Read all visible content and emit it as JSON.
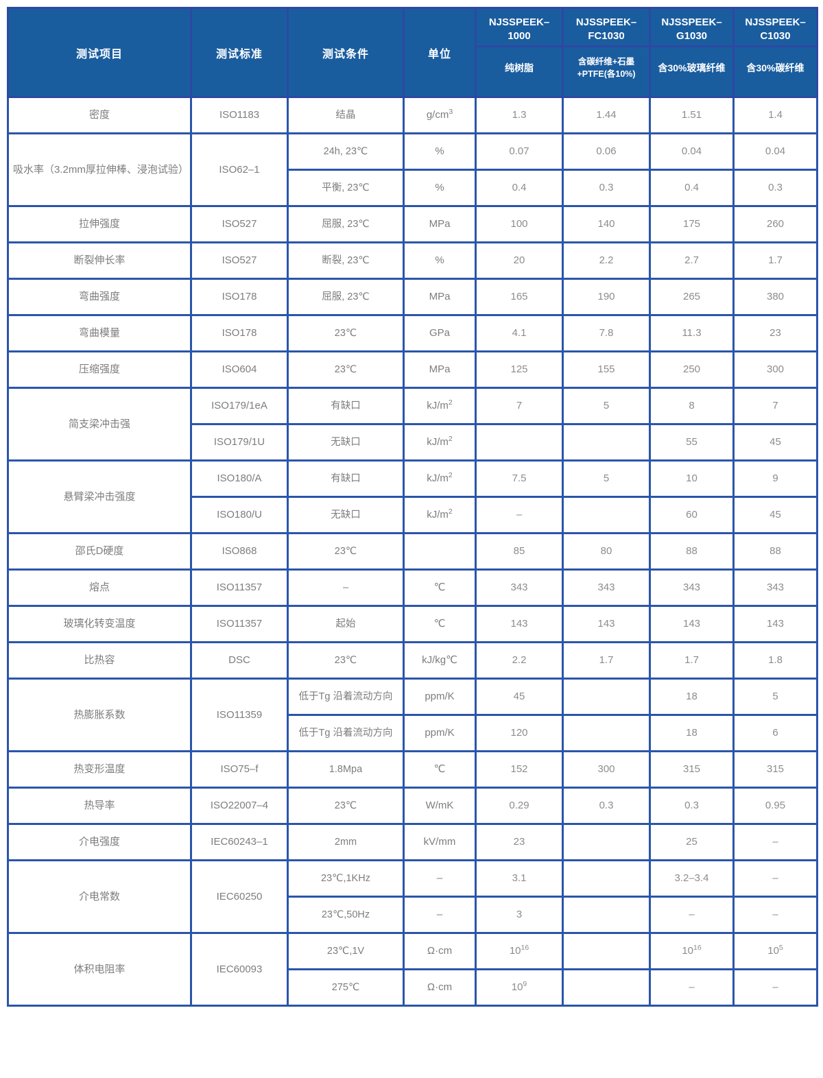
{
  "header": {
    "col_test_item": "测试项目",
    "col_standard": "测试标准",
    "col_condition": "测试条件",
    "col_unit": "单位",
    "products": [
      {
        "name": "NJSSPEEK–\n1000",
        "desc": "纯树脂"
      },
      {
        "name": "NJSSPEEK–\nFC1030",
        "desc": "含碳纤维+石墨\n+PTFE(各10%)"
      },
      {
        "name": "NJSSPEEK–\nG1030",
        "desc": "含30%玻璃纤维"
      },
      {
        "name": "NJSSPEEK–\nC1030",
        "desc": "含30%碳纤维"
      }
    ]
  },
  "rows": [
    [
      {
        "c": "item",
        "t": "密度"
      },
      {
        "c": "std",
        "t": "ISO1183"
      },
      {
        "c": "cond",
        "t": "结晶"
      },
      {
        "c": "unit",
        "t": "g/cm^3"
      },
      {
        "c": "val",
        "t": "1.3"
      },
      {
        "c": "val",
        "t": "1.44"
      },
      {
        "c": "val",
        "t": "1.51"
      },
      {
        "c": "val",
        "t": "1.4"
      }
    ],
    [
      {
        "c": "item",
        "t": "吸水率（3.2mm厚拉伸棒、浸泡试验）",
        "rs": 2
      },
      {
        "c": "std",
        "t": "ISO62–1",
        "rs": 2
      },
      {
        "c": "cond",
        "t": "24h, 23℃"
      },
      {
        "c": "unit",
        "t": "%"
      },
      {
        "c": "val",
        "t": "0.07"
      },
      {
        "c": "val",
        "t": "0.06"
      },
      {
        "c": "val",
        "t": "0.04"
      },
      {
        "c": "val",
        "t": "0.04"
      }
    ],
    [
      {
        "c": "cond",
        "t": "平衡, 23℃"
      },
      {
        "c": "unit",
        "t": "%"
      },
      {
        "c": "val",
        "t": "0.4"
      },
      {
        "c": "val",
        "t": "0.3"
      },
      {
        "c": "val",
        "t": "0.4"
      },
      {
        "c": "val",
        "t": "0.3"
      }
    ],
    [
      {
        "c": "item",
        "t": "拉伸强度"
      },
      {
        "c": "std",
        "t": "ISO527"
      },
      {
        "c": "cond",
        "t": "屈服, 23℃"
      },
      {
        "c": "unit",
        "t": "MPa"
      },
      {
        "c": "val",
        "t": "100"
      },
      {
        "c": "val",
        "t": "140"
      },
      {
        "c": "val",
        "t": "175"
      },
      {
        "c": "val",
        "t": "260"
      }
    ],
    [
      {
        "c": "item",
        "t": "断裂伸长率"
      },
      {
        "c": "std",
        "t": "ISO527"
      },
      {
        "c": "cond",
        "t": "断裂, 23℃"
      },
      {
        "c": "unit",
        "t": "%"
      },
      {
        "c": "val",
        "t": "20"
      },
      {
        "c": "val",
        "t": "2.2"
      },
      {
        "c": "val",
        "t": "2.7"
      },
      {
        "c": "val",
        "t": "1.7"
      }
    ],
    [
      {
        "c": "item",
        "t": "弯曲强度"
      },
      {
        "c": "std",
        "t": "ISO178"
      },
      {
        "c": "cond",
        "t": "屈服, 23℃"
      },
      {
        "c": "unit",
        "t": "MPa"
      },
      {
        "c": "val",
        "t": "165"
      },
      {
        "c": "val",
        "t": "190"
      },
      {
        "c": "val",
        "t": "265"
      },
      {
        "c": "val",
        "t": "380"
      }
    ],
    [
      {
        "c": "item",
        "t": "弯曲模量"
      },
      {
        "c": "std",
        "t": "ISO178"
      },
      {
        "c": "cond",
        "t": "23℃"
      },
      {
        "c": "unit",
        "t": "GPa"
      },
      {
        "c": "val",
        "t": "4.1"
      },
      {
        "c": "val",
        "t": "7.8"
      },
      {
        "c": "val",
        "t": "11.3"
      },
      {
        "c": "val",
        "t": "23"
      }
    ],
    [
      {
        "c": "item",
        "t": "压缩强度"
      },
      {
        "c": "std",
        "t": "ISO604"
      },
      {
        "c": "cond",
        "t": "23℃"
      },
      {
        "c": "unit",
        "t": "MPa"
      },
      {
        "c": "val",
        "t": "125"
      },
      {
        "c": "val",
        "t": "155"
      },
      {
        "c": "val",
        "t": "250"
      },
      {
        "c": "val",
        "t": "300"
      }
    ],
    [
      {
        "c": "item",
        "t": "简支梁冲击强",
        "rs": 2
      },
      {
        "c": "std",
        "t": "ISO179/1eA"
      },
      {
        "c": "cond",
        "t": "有缺口"
      },
      {
        "c": "unit",
        "t": "kJ/m^2"
      },
      {
        "c": "val",
        "t": "7"
      },
      {
        "c": "val",
        "t": "5"
      },
      {
        "c": "val",
        "t": "8"
      },
      {
        "c": "val",
        "t": "7"
      }
    ],
    [
      {
        "c": "std",
        "t": "ISO179/1U"
      },
      {
        "c": "cond",
        "t": "无缺口"
      },
      {
        "c": "unit",
        "t": "kJ/m^2"
      },
      {
        "c": "val",
        "t": ""
      },
      {
        "c": "val",
        "t": ""
      },
      {
        "c": "val",
        "t": "55"
      },
      {
        "c": "val",
        "t": "45"
      }
    ],
    [
      {
        "c": "item",
        "t": "悬臂梁冲击强度",
        "rs": 2
      },
      {
        "c": "std",
        "t": "ISO180/A"
      },
      {
        "c": "cond",
        "t": "有缺口"
      },
      {
        "c": "unit",
        "t": "kJ/m^2"
      },
      {
        "c": "val",
        "t": "7.5"
      },
      {
        "c": "val",
        "t": "5"
      },
      {
        "c": "val",
        "t": "10"
      },
      {
        "c": "val",
        "t": "9"
      }
    ],
    [
      {
        "c": "std",
        "t": "ISO180/U"
      },
      {
        "c": "cond",
        "t": "无缺口"
      },
      {
        "c": "unit",
        "t": "kJ/m^2"
      },
      {
        "c": "val",
        "t": "–"
      },
      {
        "c": "val",
        "t": ""
      },
      {
        "c": "val",
        "t": "60"
      },
      {
        "c": "val",
        "t": "45"
      }
    ],
    [
      {
        "c": "item",
        "t": "邵氏D硬度"
      },
      {
        "c": "std",
        "t": "ISO868"
      },
      {
        "c": "cond",
        "t": "23℃"
      },
      {
        "c": "unit",
        "t": ""
      },
      {
        "c": "val",
        "t": "85"
      },
      {
        "c": "val",
        "t": "80"
      },
      {
        "c": "val",
        "t": "88"
      },
      {
        "c": "val",
        "t": "88"
      }
    ],
    [
      {
        "c": "item",
        "t": "熔点"
      },
      {
        "c": "std",
        "t": "ISO11357"
      },
      {
        "c": "cond",
        "t": "–"
      },
      {
        "c": "unit",
        "t": "℃"
      },
      {
        "c": "val",
        "t": "343"
      },
      {
        "c": "val",
        "t": "343"
      },
      {
        "c": "val",
        "t": "343"
      },
      {
        "c": "val",
        "t": "343"
      }
    ],
    [
      {
        "c": "item",
        "t": "玻璃化转变温度"
      },
      {
        "c": "std",
        "t": "ISO11357"
      },
      {
        "c": "cond",
        "t": "起始"
      },
      {
        "c": "unit",
        "t": "℃"
      },
      {
        "c": "val",
        "t": "143"
      },
      {
        "c": "val",
        "t": "143"
      },
      {
        "c": "val",
        "t": "143"
      },
      {
        "c": "val",
        "t": "143"
      }
    ],
    [
      {
        "c": "item",
        "t": "比热容"
      },
      {
        "c": "std",
        "t": "DSC"
      },
      {
        "c": "cond",
        "t": "23℃"
      },
      {
        "c": "unit",
        "t": "kJ/kg℃"
      },
      {
        "c": "val",
        "t": "2.2"
      },
      {
        "c": "val",
        "t": "1.7"
      },
      {
        "c": "val",
        "t": "1.7"
      },
      {
        "c": "val",
        "t": "1.8"
      }
    ],
    [
      {
        "c": "item",
        "t": "热膨胀系数",
        "rs": 2
      },
      {
        "c": "std",
        "t": "ISO11359",
        "rs": 2
      },
      {
        "c": "cond",
        "t": "低于Tg 沿着流动方向"
      },
      {
        "c": "unit",
        "t": "ppm/K"
      },
      {
        "c": "val",
        "t": "45"
      },
      {
        "c": "val",
        "t": ""
      },
      {
        "c": "val",
        "t": "18"
      },
      {
        "c": "val",
        "t": "5"
      }
    ],
    [
      {
        "c": "cond",
        "t": "低于Tg 沿着流动方向"
      },
      {
        "c": "unit",
        "t": "ppm/K"
      },
      {
        "c": "val",
        "t": "120"
      },
      {
        "c": "val",
        "t": ""
      },
      {
        "c": "val",
        "t": "18"
      },
      {
        "c": "val",
        "t": "6"
      }
    ],
    [
      {
        "c": "item",
        "t": "热变形温度"
      },
      {
        "c": "std",
        "t": "ISO75–f"
      },
      {
        "c": "cond",
        "t": "1.8Mpa"
      },
      {
        "c": "unit",
        "t": "℃"
      },
      {
        "c": "val",
        "t": "152"
      },
      {
        "c": "val",
        "t": "300"
      },
      {
        "c": "val",
        "t": "315"
      },
      {
        "c": "val",
        "t": "315"
      }
    ],
    [
      {
        "c": "item",
        "t": "热导率"
      },
      {
        "c": "std",
        "t": "ISO22007–4"
      },
      {
        "c": "cond",
        "t": "23℃"
      },
      {
        "c": "unit",
        "t": "W/mK"
      },
      {
        "c": "val",
        "t": "0.29"
      },
      {
        "c": "val",
        "t": "0.3"
      },
      {
        "c": "val",
        "t": "0.3"
      },
      {
        "c": "val",
        "t": "0.95"
      }
    ],
    [
      {
        "c": "item",
        "t": "介电强度"
      },
      {
        "c": "std",
        "t": "IEC60243–1"
      },
      {
        "c": "cond",
        "t": "2mm"
      },
      {
        "c": "unit",
        "t": "kV/mm"
      },
      {
        "c": "val",
        "t": "23"
      },
      {
        "c": "val",
        "t": ""
      },
      {
        "c": "val",
        "t": "25"
      },
      {
        "c": "val",
        "t": "–"
      }
    ],
    [
      {
        "c": "item",
        "t": "介电常数",
        "rs": 2
      },
      {
        "c": "std",
        "t": "IEC60250",
        "rs": 2
      },
      {
        "c": "cond",
        "t": "23℃,1KHz"
      },
      {
        "c": "unit",
        "t": "–"
      },
      {
        "c": "val",
        "t": "3.1"
      },
      {
        "c": "val",
        "t": ""
      },
      {
        "c": "val",
        "t": "3.2–3.4"
      },
      {
        "c": "val",
        "t": "–"
      }
    ],
    [
      {
        "c": "cond",
        "t": "23℃,50Hz"
      },
      {
        "c": "unit",
        "t": "–"
      },
      {
        "c": "val",
        "t": "3"
      },
      {
        "c": "val",
        "t": ""
      },
      {
        "c": "val",
        "t": "–"
      },
      {
        "c": "val",
        "t": "–"
      }
    ],
    [
      {
        "c": "item",
        "t": "体积电阻率",
        "rs": 2
      },
      {
        "c": "std",
        "t": "IEC60093",
        "rs": 2
      },
      {
        "c": "cond",
        "t": "23℃,1V"
      },
      {
        "c": "unit",
        "t": "Ω·cm"
      },
      {
        "c": "val",
        "t": "10^16"
      },
      {
        "c": "val",
        "t": ""
      },
      {
        "c": "val",
        "t": "10^16"
      },
      {
        "c": "val",
        "t": "10^5"
      }
    ],
    [
      {
        "c": "cond",
        "t": "275℃"
      },
      {
        "c": "unit",
        "t": "Ω·cm"
      },
      {
        "c": "val",
        "t": "10^9"
      },
      {
        "c": "val",
        "t": ""
      },
      {
        "c": "val",
        "t": "–"
      },
      {
        "c": "val",
        "t": "–"
      }
    ]
  ]
}
